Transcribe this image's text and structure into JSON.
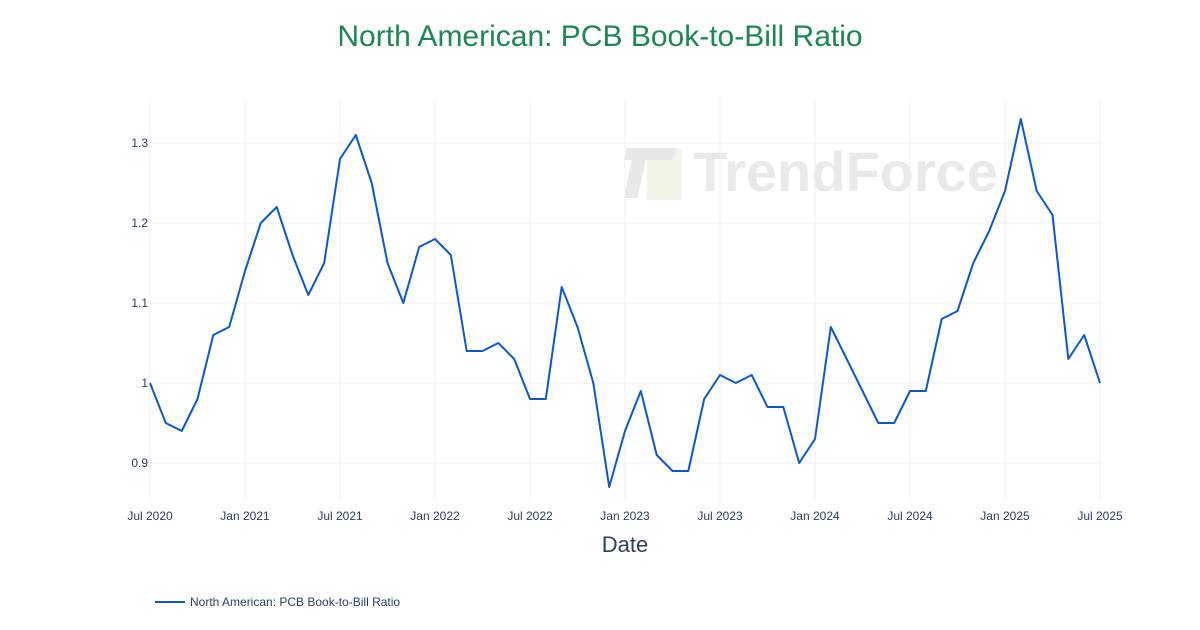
{
  "title": "North American: PCB Book-to-Bill Ratio",
  "watermark": "TrendForce",
  "xaxis_title": "Date",
  "legend": {
    "label": "North American: PCB Book-to-Bill Ratio",
    "color": "#0b57d0"
  },
  "colors": {
    "title": "#1a8754",
    "line": "#0b57d0",
    "grid": "#f0f0f0",
    "tick_text": "#2a3f5f"
  },
  "chart_data": {
    "type": "line",
    "title": "North American: PCB Book-to-Bill Ratio",
    "xlabel": "Date",
    "ylabel": "",
    "ylim": [
      0.84,
      1.36
    ],
    "grid": true,
    "legend_position": "bottom-left",
    "yticks": [
      0.9,
      1,
      1.1,
      1.2,
      1.3
    ],
    "ytick_labels": [
      "0.9",
      "1",
      "1.1",
      "1.2",
      "1.3"
    ],
    "xticks": [
      "Jul 2020",
      "Jan 2021",
      "Jul 2021",
      "Jan 2022",
      "Jul 2022",
      "Jan 2023",
      "Jul 2023",
      "Jan 2024",
      "Jul 2024",
      "Jan 2025",
      "Jul 2025"
    ],
    "series": [
      {
        "name": "North American: PCB Book-to-Bill Ratio",
        "x": [
          "2020-07",
          "2020-08",
          "2020-09",
          "2020-10",
          "2020-11",
          "2020-12",
          "2021-01",
          "2021-02",
          "2021-03",
          "2021-04",
          "2021-05",
          "2021-06",
          "2021-07",
          "2021-08",
          "2021-09",
          "2021-10",
          "2021-11",
          "2021-12",
          "2022-01",
          "2022-02",
          "2022-03",
          "2022-04",
          "2022-05",
          "2022-06",
          "2022-07",
          "2022-08",
          "2022-09",
          "2022-10",
          "2022-11",
          "2022-12",
          "2023-01",
          "2023-02",
          "2023-03",
          "2023-04",
          "2023-05",
          "2023-06",
          "2023-07",
          "2023-08",
          "2023-09",
          "2023-10",
          "2023-11",
          "2023-12",
          "2024-01",
          "2024-02",
          "2024-03",
          "2024-04",
          "2024-05",
          "2024-06",
          "2024-07",
          "2024-08",
          "2024-09",
          "2024-10",
          "2024-11",
          "2024-12",
          "2025-01",
          "2025-02",
          "2025-03",
          "2025-04",
          "2025-05",
          "2025-06",
          "2025-07"
        ],
        "values": [
          1.0,
          0.95,
          0.94,
          0.98,
          1.06,
          1.07,
          1.14,
          1.2,
          1.22,
          1.16,
          1.11,
          1.15,
          1.28,
          1.31,
          1.25,
          1.15,
          1.1,
          1.17,
          1.18,
          1.16,
          1.04,
          1.04,
          1.05,
          1.03,
          0.98,
          0.98,
          1.12,
          1.07,
          1.0,
          0.87,
          0.94,
          0.99,
          0.91,
          0.89,
          0.89,
          0.98,
          1.01,
          1.0,
          1.01,
          0.97,
          0.97,
          0.9,
          0.93,
          1.07,
          1.03,
          0.99,
          0.95,
          0.95,
          0.99,
          0.99,
          1.08,
          1.09,
          1.15,
          1.19,
          1.24,
          1.33,
          1.24,
          1.21,
          1.03,
          1.06,
          1.0
        ]
      }
    ]
  }
}
